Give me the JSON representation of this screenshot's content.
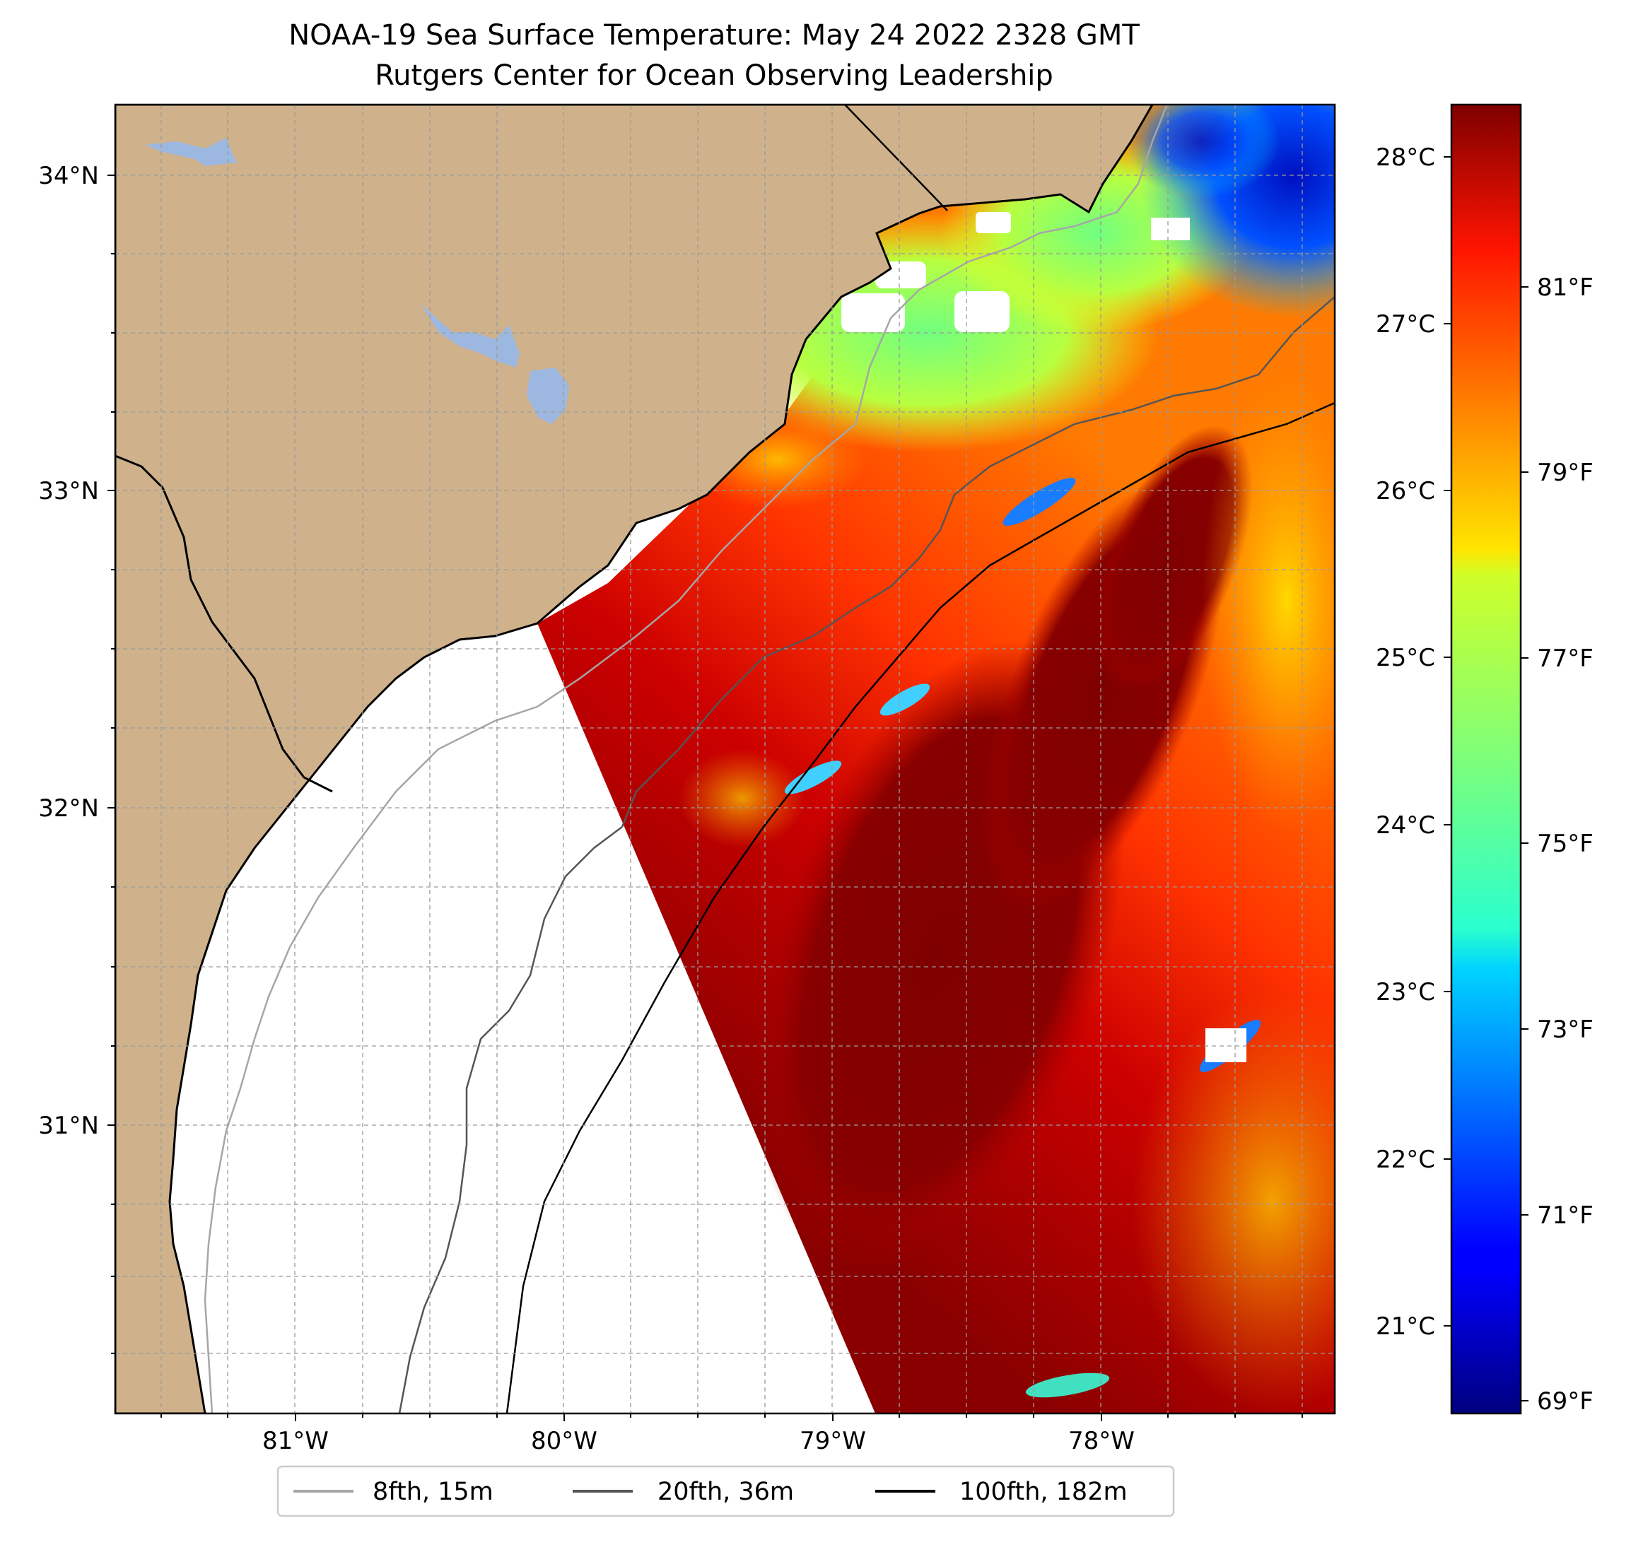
{
  "title": {
    "line1": "NOAA-19 Sea Surface Temperature: May 24 2022 2328 GMT",
    "line2": "Rutgers Center for Ocean Observing Leadership"
  },
  "map": {
    "lon_range": [
      -81.68,
      -77.17
    ],
    "lat_range": [
      30.07,
      34.22
    ],
    "lat_labels": [
      "34°N",
      "33°N",
      "32°N",
      "31°N"
    ],
    "lon_labels": [
      "81°W",
      "80°W",
      "79°W",
      "78°W"
    ],
    "land_color": "#cfb28b",
    "water_body_color": "#9db8e0",
    "grid": true
  },
  "colorbar": {
    "colormap": "jet",
    "celsius_range": [
      20.55,
      28.4
    ],
    "celsius_labels": [
      "28°C",
      "27°C",
      "26°C",
      "25°C",
      "24°C",
      "23°C",
      "22°C",
      "21°C"
    ],
    "fahrenheit_labels": [
      "81°F",
      "79°F",
      "77°F",
      "75°F",
      "73°F",
      "71°F",
      "69°F"
    ]
  },
  "legend": {
    "items": [
      {
        "label": "8fth, 15m",
        "color": "#a6a6a6"
      },
      {
        "label": "20fth, 36m",
        "color": "#555555"
      },
      {
        "label": "100fth, 182m",
        "color": "#000000"
      }
    ]
  }
}
